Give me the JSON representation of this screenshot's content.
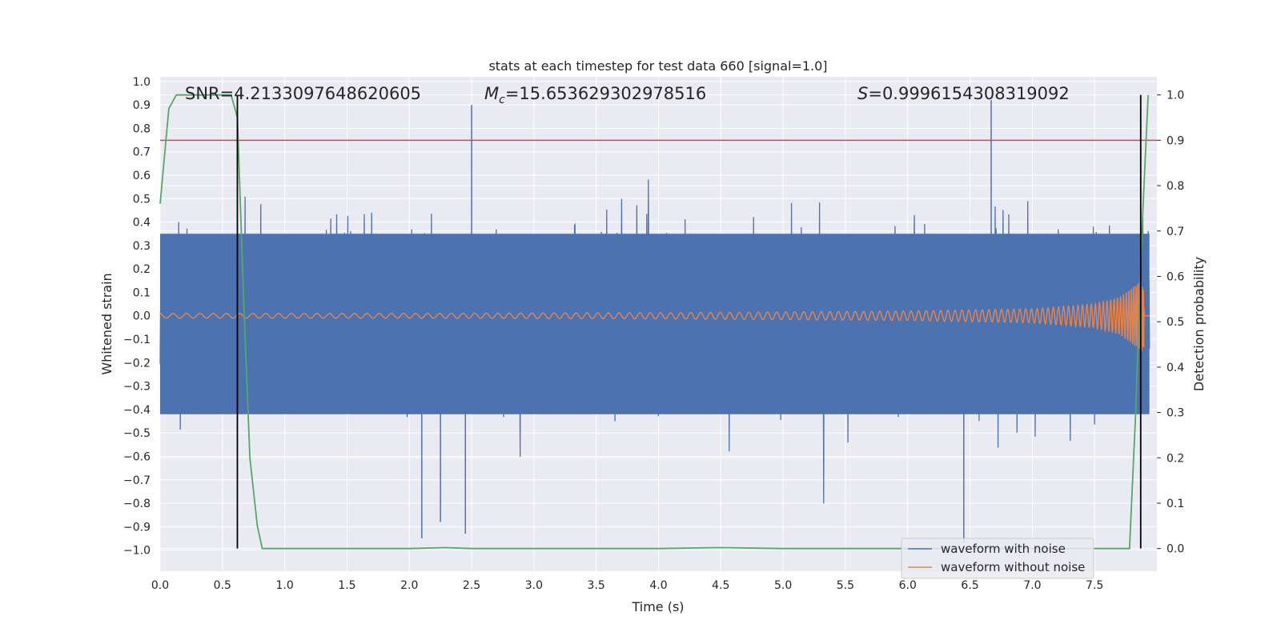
{
  "chart_data": {
    "type": "line",
    "title": "stats at each timestep for test data 660 [signal=1.0]",
    "xlabel": "Time (s)",
    "ylabel_left": "Whitened strain",
    "ylabel_right": "Detection probability",
    "xlim": [
      0.0,
      8.0
    ],
    "ylim_left": [
      -1.09,
      1.02
    ],
    "ylim_right": [
      -0.05,
      1.04
    ],
    "grid": true,
    "x_ticks": [
      "0.0",
      "0.5",
      "1.0",
      "1.5",
      "2.0",
      "2.5",
      "3.0",
      "3.5",
      "4.0",
      "4.5",
      "5.0",
      "5.5",
      "6.0",
      "6.5",
      "7.0",
      "7.5"
    ],
    "y_left_ticks": [
      "1.0",
      "0.9",
      "0.8",
      "0.7",
      "0.6",
      "0.5",
      "0.4",
      "0.3",
      "0.2",
      "0.1",
      "0.0",
      "−0.1",
      "−0.2",
      "−0.3",
      "−0.4",
      "−0.5",
      "−0.6",
      "−0.7",
      "−0.8",
      "−0.9",
      "−1.0"
    ],
    "y_right_ticks": [
      "1.0",
      "0.9",
      "0.8",
      "0.7",
      "0.6",
      "0.5",
      "0.4",
      "0.3",
      "0.2",
      "0.1",
      "0.0"
    ],
    "annotations": {
      "snr": "SNR=4.2133097648620605",
      "mc_symbol": "M",
      "mc_sub": "c",
      "mc_value": "=15.653629302978516",
      "s_symbol": "S",
      "s_value": "=0.9996154308319092"
    },
    "legend": {
      "placement": "lower right",
      "entries": [
        "waveform with noise",
        "waveform without noise"
      ]
    },
    "threshold_line": {
      "axis": "right",
      "y": 0.9,
      "color": "#c44e52"
    },
    "vertical_lines": {
      "x": [
        0.62,
        7.87
      ],
      "color": "#000000"
    },
    "series": [
      {
        "name": "waveform with noise",
        "axis": "left",
        "color": "#4c72b0",
        "style": "dense noise band roughly between -0.45 and 0.45 with spikes",
        "notable_peaks": [
          {
            "x": 6.67,
            "y": 0.92
          },
          {
            "x": 2.5,
            "y": 0.9
          },
          {
            "x": 6.45,
            "y": -0.97
          },
          {
            "x": 2.1,
            "y": -0.95
          },
          {
            "x": 2.25,
            "y": -0.88
          },
          {
            "x": 2.45,
            "y": -0.93
          }
        ]
      },
      {
        "name": "waveform without noise",
        "axis": "left",
        "color": "#dd8452",
        "style": "chirp, amplitude grows toward merger",
        "envelope": {
          "x": [
            0.0,
            2.0,
            4.0,
            6.0,
            7.0,
            7.5,
            7.7,
            7.8,
            7.87
          ],
          "amp": [
            0.01,
            0.01,
            0.013,
            0.02,
            0.03,
            0.05,
            0.08,
            0.12,
            0.15
          ]
        }
      },
      {
        "name": "",
        "axis": "right",
        "color": "#55a868",
        "x": [
          0.0,
          0.07,
          0.13,
          0.2,
          0.3,
          0.4,
          0.5,
          0.57,
          0.62,
          0.67,
          0.72,
          0.78,
          0.82,
          1.0,
          2.0,
          2.3,
          2.5,
          3.0,
          4.0,
          4.5,
          5.0,
          6.0,
          7.0,
          7.5,
          7.78,
          7.83,
          7.88,
          7.93
        ],
        "values": [
          0.76,
          0.97,
          1.0,
          1.0,
          1.0,
          1.0,
          1.0,
          1.0,
          0.95,
          0.55,
          0.2,
          0.05,
          0.0,
          0.0,
          0.0,
          0.002,
          0.0,
          0.0,
          0.0,
          0.002,
          0.0,
          0.0,
          0.0,
          0.0,
          0.0,
          0.3,
          0.7,
          1.0
        ]
      }
    ]
  }
}
